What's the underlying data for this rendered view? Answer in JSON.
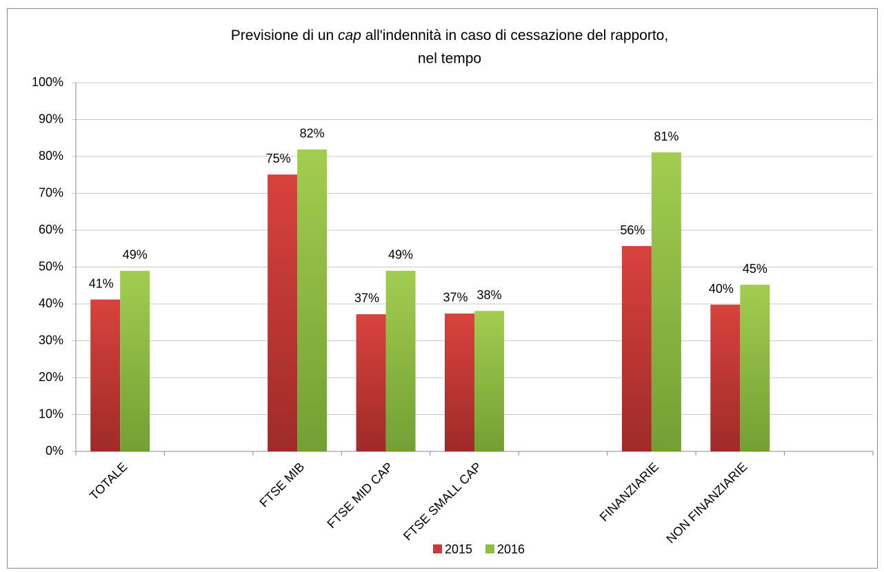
{
  "chart_data": {
    "type": "bar",
    "title": [
      "Previsione di un ",
      "cap",
      " all'indennità in caso di cessazione del rapporto,",
      "nel tempo"
    ],
    "categories": [
      "TOTALE",
      null,
      "FTSE MIB",
      "FTSE MID CAP",
      "FTSE SMALL CAP",
      null,
      "FINANZIARIE",
      "NON FINANZIARIE",
      null
    ],
    "series": [
      {
        "name": "2015",
        "color": "#c9383a",
        "values": [
          41.2,
          null,
          75.1,
          37.2,
          37.4,
          null,
          55.7,
          39.8,
          null
        ],
        "value_labels": [
          "41%",
          null,
          "75%",
          "37%",
          "37%",
          null,
          "56%",
          "40%",
          null
        ]
      },
      {
        "name": "2016",
        "color": "#8fbf3f",
        "values": [
          49,
          null,
          81.9,
          49,
          38.1,
          null,
          81.1,
          45.2,
          null
        ],
        "value_labels": [
          "49%",
          null,
          "82%",
          "49%",
          "38%",
          null,
          "81%",
          "45%",
          null
        ]
      }
    ],
    "ylim": [
      0,
      100
    ],
    "yticks": [
      {
        "value": 0,
        "label": "0%"
      },
      {
        "value": 10,
        "label": "10%"
      },
      {
        "value": 20,
        "label": "20%"
      },
      {
        "value": 30,
        "label": "30%"
      },
      {
        "value": 40,
        "label": "40%"
      },
      {
        "value": 50,
        "label": "50%"
      },
      {
        "value": 60,
        "label": "60%"
      },
      {
        "value": 70,
        "label": "70%"
      },
      {
        "value": 80,
        "label": "80%"
      },
      {
        "value": 90,
        "label": "90%"
      },
      {
        "value": 100,
        "label": "100%"
      }
    ],
    "grid": true,
    "legend": "bottom"
  }
}
